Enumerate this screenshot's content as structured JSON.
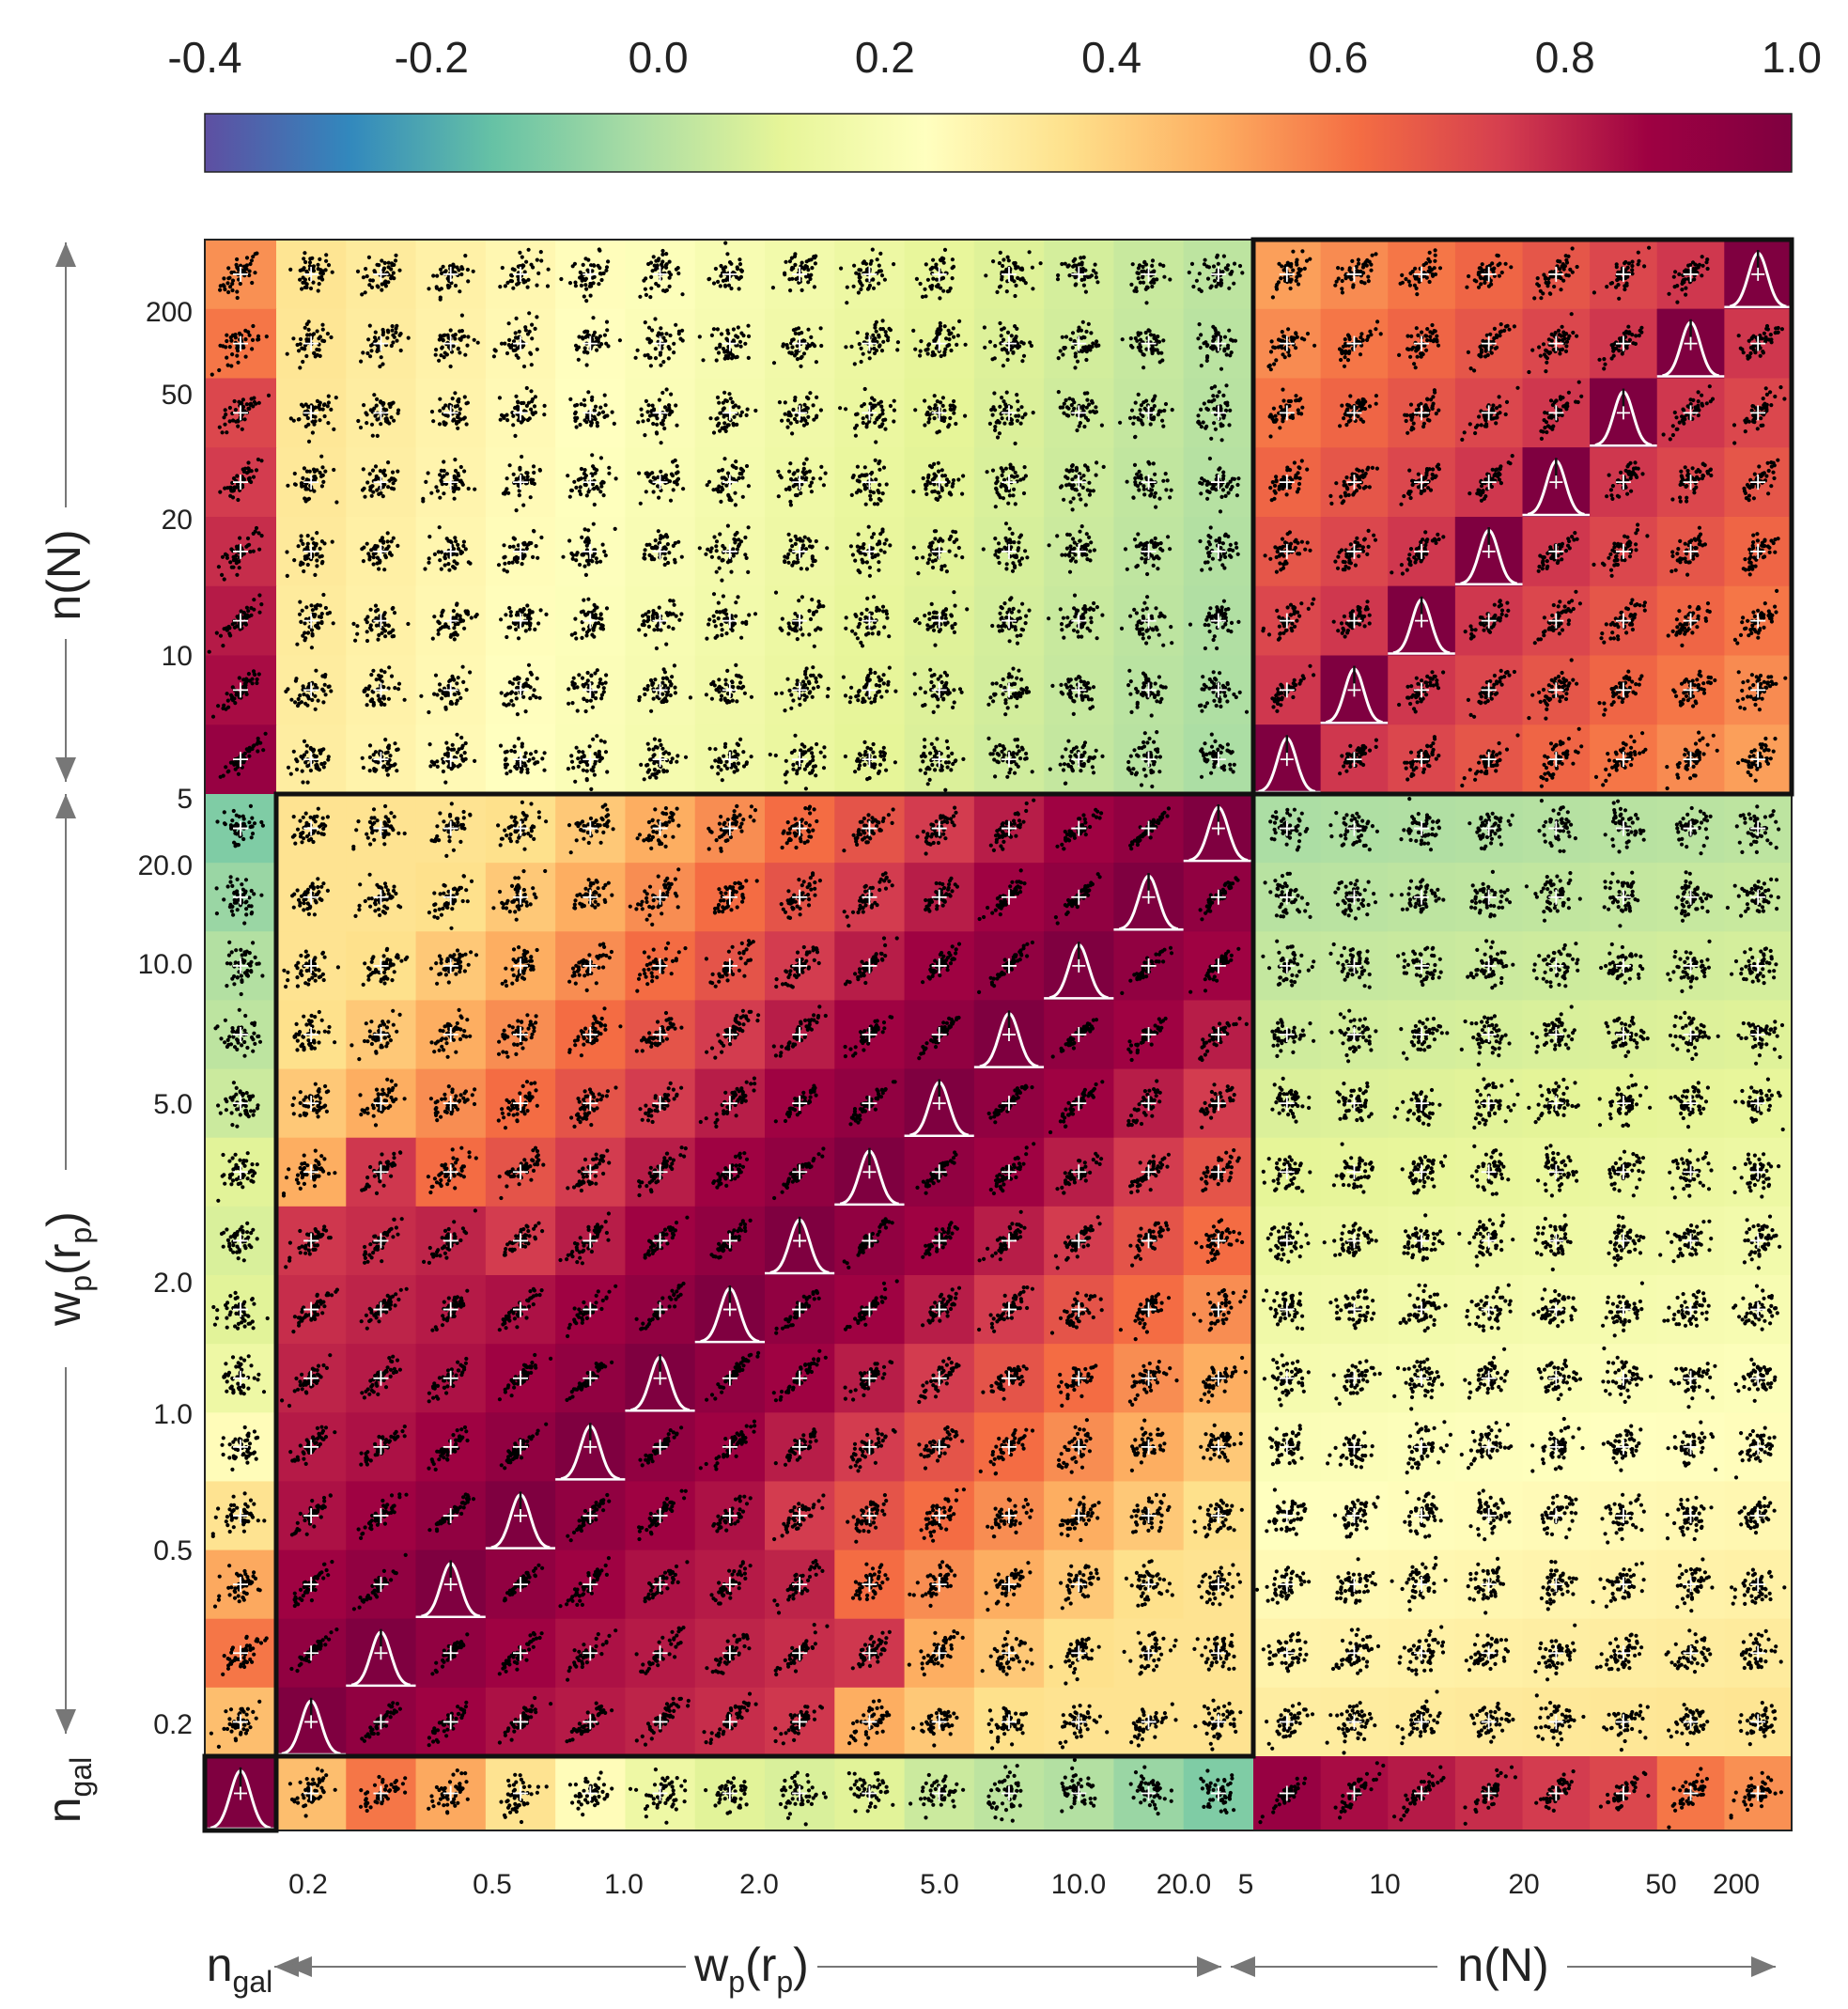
{
  "chart_data": {
    "type": "heatmap",
    "description_free": true,
    "colorbar": {
      "ticks": [
        "-0.4",
        "-0.2",
        "0.0",
        "0.2",
        "0.4",
        "0.6",
        "0.8",
        "1.0"
      ],
      "range": [
        -0.4,
        1.0
      ],
      "palette": "Spectral_r",
      "colors": [
        "#5e4fa2",
        "#3288bd",
        "#66c2a5",
        "#abdda4",
        "#e6f598",
        "#ffffbf",
        "#fee08b",
        "#fdae61",
        "#f46d43",
        "#d53e4f",
        "#9e0142",
        "#7f0040"
      ]
    },
    "blocks": {
      "ngal_label": "n",
      "ngal_sub": "gal",
      "wp_label_main": "w",
      "wp_sub_p": "p",
      "wp_paren_open": "(r",
      "wp_paren_close": ")",
      "nN_label": "n(N)"
    },
    "x_ticks_wp": [
      "0.2",
      "0.5",
      "1.0",
      "2.0",
      "5.0",
      "10.0",
      "20.0"
    ],
    "x_ticks_nN": [
      "5",
      "10",
      "20",
      "50",
      "200"
    ],
    "y_ticks_nN": [
      "200",
      "50",
      "20",
      "10",
      "5"
    ],
    "y_ticks_wp": [
      "20.0",
      "10.0",
      "5.0",
      "2.0",
      "1.0",
      "0.5",
      "0.2"
    ],
    "n_wp_bins": 14,
    "n_nN_bins": 8,
    "correlation_blocks": {
      "ngal_wp": [
        0.45,
        0.6,
        0.5,
        0.35,
        0.25,
        0.15,
        0.1,
        0.08,
        0.1,
        0.05,
        0.02,
        0.0,
        -0.05,
        -0.1
      ],
      "ngal_nN": [
        0.9,
        0.85,
        0.82,
        0.78,
        0.75,
        0.72,
        0.6,
        0.55
      ],
      "wp_nN_mean": 0.1,
      "nN_nN_offdiag": 0.65,
      "wp_wp_near_diag": 0.95
    }
  }
}
